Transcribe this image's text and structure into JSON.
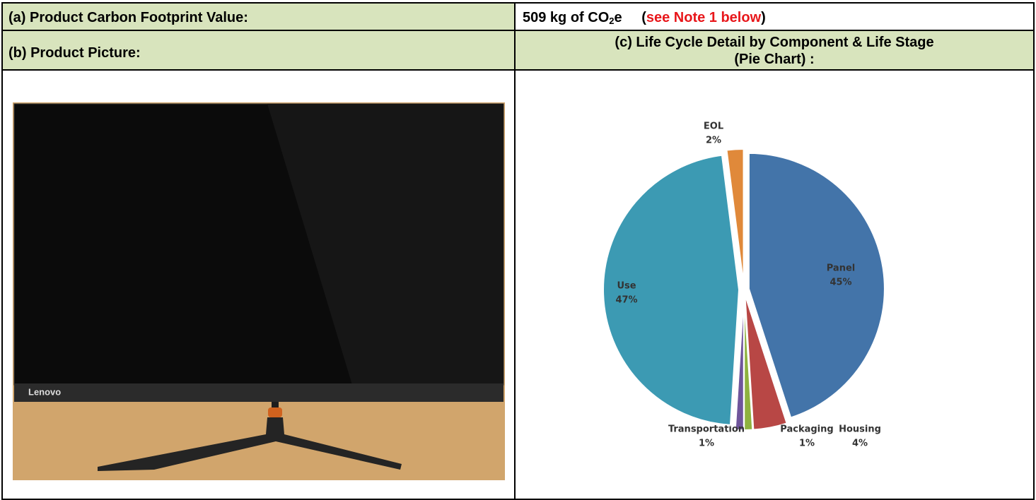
{
  "table": {
    "footprint_label": "(a) Product Carbon Footprint Value:",
    "footprint_value": {
      "amount": "509 kg of CO",
      "subscript": "2",
      "unit_suffix": "e",
      "note_open": "(",
      "note": "see Note 1 below",
      "note_close": ")"
    },
    "picture_label": "(b) Product Picture:",
    "chart_label": [
      "(c) Life Cycle Detail by Component & Life Stage",
      "(Pie Chart) :"
    ]
  },
  "product_picture": {
    "brand": "Lenovo"
  },
  "chart_data": {
    "type": "pie",
    "categories": [
      "Panel",
      "Housing",
      "Packaging",
      "Transportation",
      "Use",
      "EOL"
    ],
    "values": [
      45,
      4,
      1,
      1,
      47,
      2
    ],
    "value_labels": [
      "45%",
      "4%",
      "1%",
      "1%",
      "47%",
      "2%"
    ],
    "colors": [
      "#4374a9",
      "#b84745",
      "#8eb23f",
      "#6f559b",
      "#3c9ab3",
      "#e0893a"
    ]
  }
}
